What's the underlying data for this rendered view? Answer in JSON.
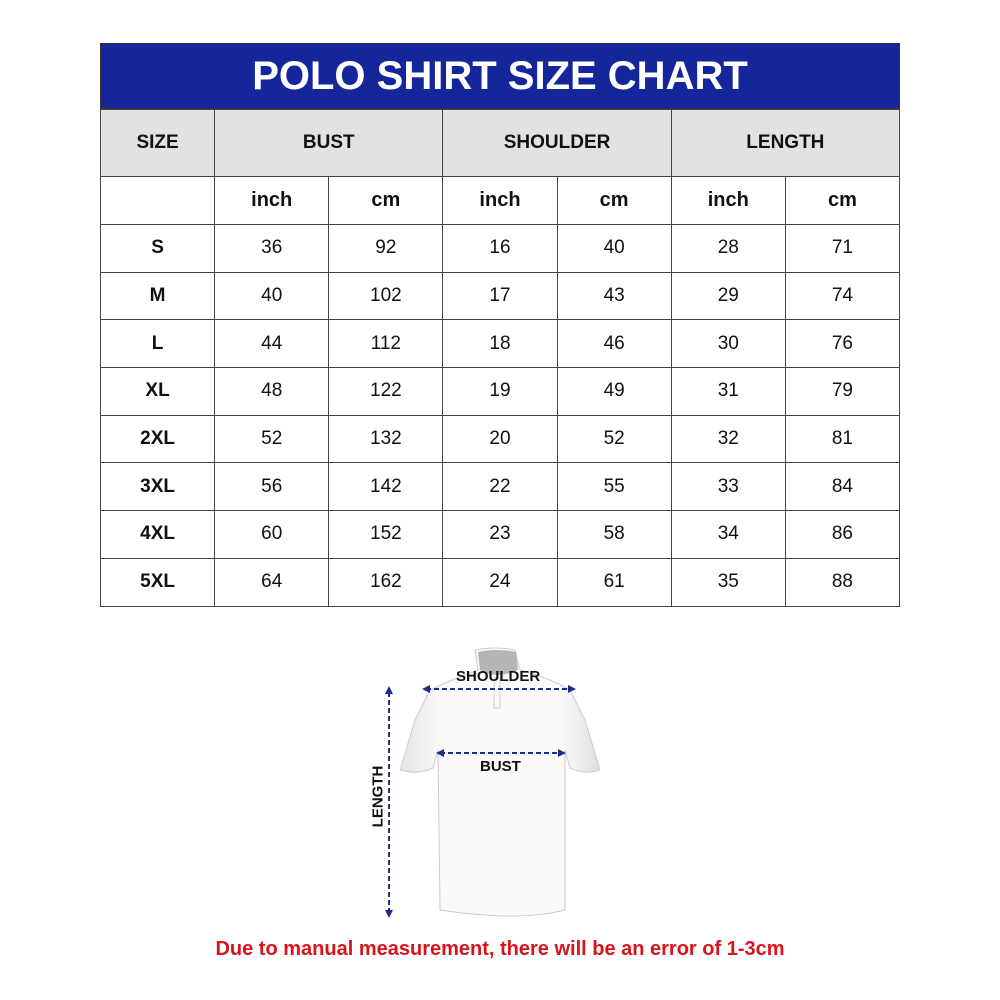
{
  "title": "POLO SHIRT SIZE CHART",
  "colors": {
    "header_bg": "#14269a",
    "note": "#d8141b",
    "arrow": "#1e2d8c"
  },
  "headers": {
    "size": "SIZE",
    "bust": "BUST",
    "shoulder": "SHOULDER",
    "length": "LENGTH"
  },
  "units": [
    "inch",
    "cm",
    "inch",
    "cm",
    "inch",
    "cm"
  ],
  "rows": [
    {
      "size": "S",
      "v": [
        "36",
        "92",
        "16",
        "40",
        "28",
        "71"
      ]
    },
    {
      "size": "M",
      "v": [
        "40",
        "102",
        "17",
        "43",
        "29",
        "74"
      ]
    },
    {
      "size": "L",
      "v": [
        "44",
        "112",
        "18",
        "46",
        "30",
        "76"
      ]
    },
    {
      "size": "XL",
      "v": [
        "48",
        "122",
        "19",
        "49",
        "31",
        "79"
      ]
    },
    {
      "size": "2XL",
      "v": [
        "52",
        "132",
        "20",
        "52",
        "32",
        "81"
      ]
    },
    {
      "size": "3XL",
      "v": [
        "56",
        "142",
        "22",
        "55",
        "33",
        "84"
      ]
    },
    {
      "size": "4XL",
      "v": [
        "60",
        "152",
        "23",
        "58",
        "34",
        "86"
      ]
    },
    {
      "size": "5XL",
      "v": [
        "64",
        "162",
        "24",
        "61",
        "35",
        "88"
      ]
    }
  ],
  "diagram": {
    "shoulder": "SHOULDER",
    "bust": "BUST",
    "length": "LENGTH"
  },
  "note": "Due to manual measurement, there will be an error of 1-3cm"
}
